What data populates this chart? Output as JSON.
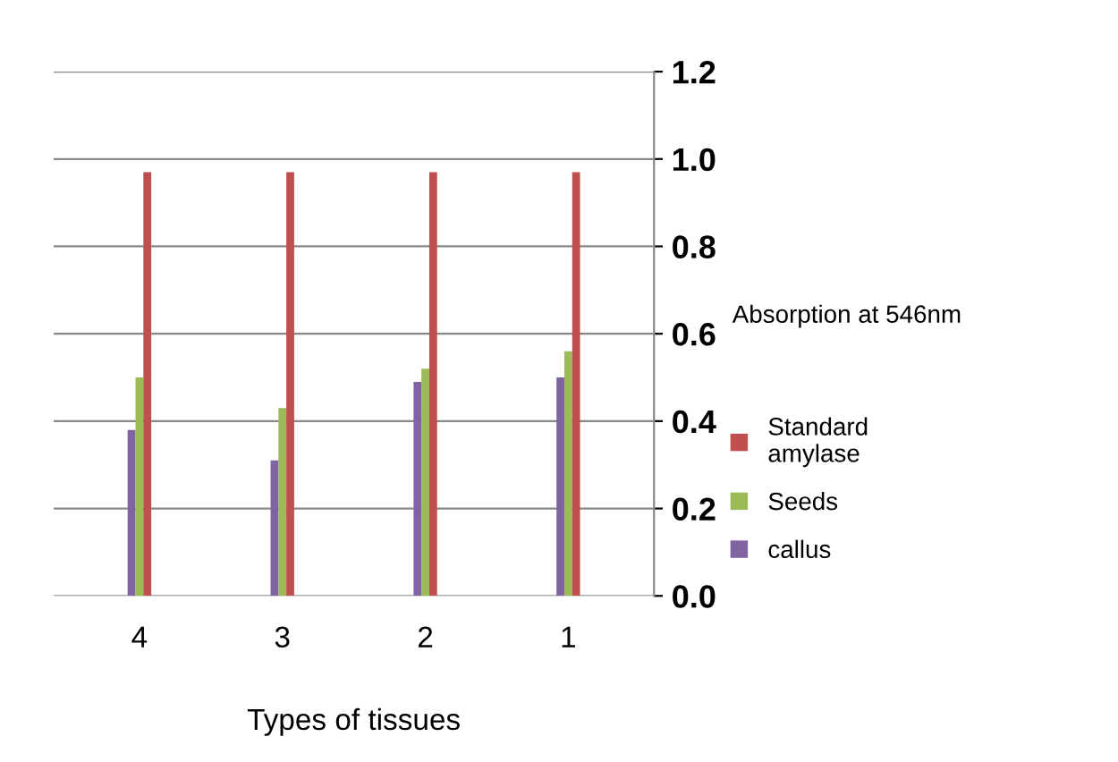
{
  "chart_data": {
    "type": "bar",
    "xlabel": "Types of tissues",
    "ylabel": "Absorption at 546nm",
    "categories": [
      "4",
      "3",
      "2",
      "1"
    ],
    "series": [
      {
        "name": "callus",
        "color": "#8064a2",
        "values": [
          0.38,
          0.31,
          0.49,
          0.5
        ]
      },
      {
        "name": "Seeds",
        "color": "#9bbb59",
        "values": [
          0.5,
          0.43,
          0.52,
          0.56
        ]
      },
      {
        "name": "Standard amylase",
        "color": "#c0504d",
        "values": [
          0.97,
          0.97,
          0.97,
          0.97
        ]
      }
    ],
    "ylim": [
      0,
      1.2
    ],
    "yticks": [
      {
        "value": 0,
        "label": "0.0"
      },
      {
        "value": 0.2,
        "label": "0.2"
      },
      {
        "value": 0.4,
        "label": "0.4"
      },
      {
        "value": 0.6,
        "label": "0.6"
      },
      {
        "value": 0.8,
        "label": "0.8"
      },
      {
        "value": 1.0,
        "label": "1.0"
      },
      {
        "value": 1.2,
        "label": "1.2"
      }
    ],
    "grid": "y",
    "legend": "right"
  }
}
